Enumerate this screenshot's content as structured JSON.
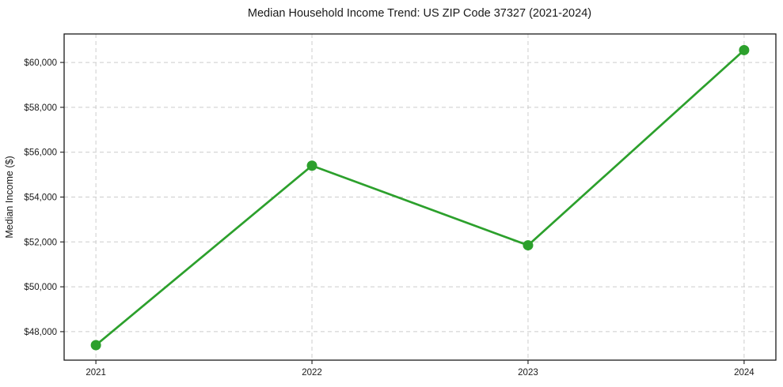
{
  "chart": {
    "title": "Median Household Income Trend: US ZIP Code 37327 (2021-2024)",
    "ylabel": "Median Income ($)"
  },
  "chart_data": {
    "type": "line",
    "title": "Median Household Income Trend: US ZIP Code 37327 (2021-2024)",
    "xlabel": "",
    "ylabel": "Median Income ($)",
    "x": [
      2021,
      2022,
      2023,
      2024
    ],
    "values": [
      47400,
      55400,
      51850,
      60550
    ],
    "x_ticks": [
      2021,
      2022,
      2023,
      2024
    ],
    "x_tick_labels": [
      "2021",
      "2022",
      "2023",
      "2024"
    ],
    "y_ticks": [
      48000,
      50000,
      52000,
      54000,
      56000,
      58000,
      60000
    ],
    "y_tick_labels": [
      "$48,000",
      "$50,000",
      "$52,000",
      "$54,000",
      "$56,000",
      "$58,000",
      "$60,000"
    ],
    "xlim": [
      2020.853,
      2024.147
    ],
    "ylim": [
      46730,
      61270
    ],
    "grid": true,
    "grid_style": "dashed",
    "legend": false,
    "line_color": "#2ca02c",
    "marker": "circle",
    "marker_color": "#2ca02c",
    "grid_color": "#cccccc",
    "spine_color": "#1a1a1a",
    "background_color": "#ffffff"
  }
}
